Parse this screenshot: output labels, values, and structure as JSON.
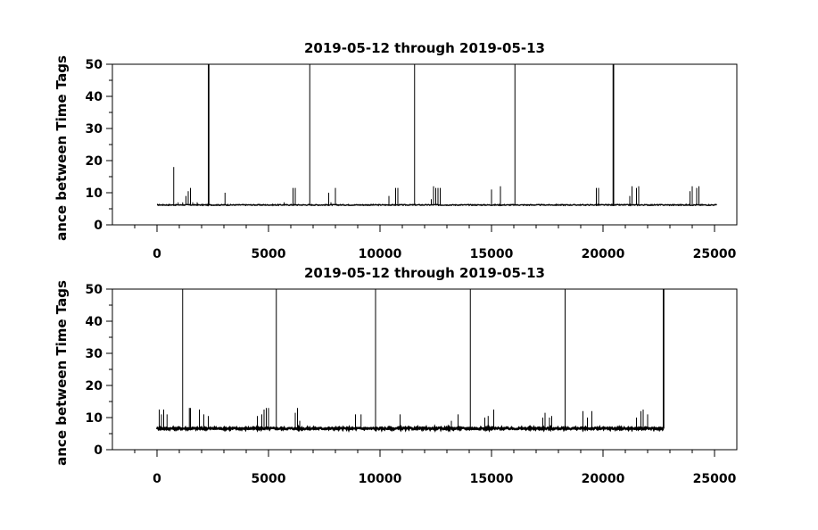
{
  "chart_data": [
    {
      "type": "line",
      "title": "2019-05-12 through 2019-05-13",
      "xlabel": "",
      "ylabel": "ance between Time Tags",
      "xlim": [
        -2000,
        26000
      ],
      "ylim": [
        0,
        50
      ],
      "x_ticks": [
        0,
        5000,
        10000,
        15000,
        20000,
        25000
      ],
      "x_tick_labels": [
        "0",
        "5000",
        "10000",
        "15000",
        "20000",
        "25000"
      ],
      "y_ticks": [
        0,
        10,
        20,
        30,
        40,
        50
      ],
      "y_tick_labels": [
        "0",
        "10",
        "20",
        "30",
        "40",
        "50"
      ],
      "baseline": {
        "x_start": 0,
        "x_end": 25100,
        "value": 6.2,
        "noise": 0.3
      },
      "spikes": [
        {
          "x": 750,
          "y": 18
        },
        {
          "x": 950,
          "y": 7
        },
        {
          "x": 1150,
          "y": 7
        },
        {
          "x": 1300,
          "y": 9
        },
        {
          "x": 1400,
          "y": 10.5
        },
        {
          "x": 1500,
          "y": 11.5
        },
        {
          "x": 1600,
          "y": 7
        },
        {
          "x": 1800,
          "y": 7
        },
        {
          "x": 2300,
          "y": 50
        },
        {
          "x": 2330,
          "y": 50
        },
        {
          "x": 3050,
          "y": 10
        },
        {
          "x": 5700,
          "y": 7
        },
        {
          "x": 6100,
          "y": 11.5
        },
        {
          "x": 6200,
          "y": 11.5
        },
        {
          "x": 6850,
          "y": 50
        },
        {
          "x": 7700,
          "y": 10
        },
        {
          "x": 7800,
          "y": 7
        },
        {
          "x": 8000,
          "y": 11.5
        },
        {
          "x": 10400,
          "y": 9
        },
        {
          "x": 10700,
          "y": 11.5
        },
        {
          "x": 10800,
          "y": 11.5
        },
        {
          "x": 11550,
          "y": 50
        },
        {
          "x": 12300,
          "y": 8
        },
        {
          "x": 12400,
          "y": 12
        },
        {
          "x": 12500,
          "y": 11.5
        },
        {
          "x": 12600,
          "y": 11.5
        },
        {
          "x": 12700,
          "y": 11.5
        },
        {
          "x": 15000,
          "y": 11
        },
        {
          "x": 15400,
          "y": 12
        },
        {
          "x": 16050,
          "y": 50
        },
        {
          "x": 19700,
          "y": 11.5
        },
        {
          "x": 19800,
          "y": 11.5
        },
        {
          "x": 20450,
          "y": 50
        },
        {
          "x": 20480,
          "y": 50
        },
        {
          "x": 21200,
          "y": 9
        },
        {
          "x": 21300,
          "y": 12
        },
        {
          "x": 21500,
          "y": 11.5
        },
        {
          "x": 21600,
          "y": 12
        },
        {
          "x": 23900,
          "y": 10.5
        },
        {
          "x": 24000,
          "y": 12
        },
        {
          "x": 24200,
          "y": 11.5
        },
        {
          "x": 24300,
          "y": 12
        }
      ]
    },
    {
      "type": "line",
      "title": "2019-05-12 through 2019-05-13",
      "xlabel": "",
      "ylabel": "ance between Time Tags",
      "xlim": [
        -2000,
        26000
      ],
      "ylim": [
        0,
        50
      ],
      "x_ticks": [
        0,
        5000,
        10000,
        15000,
        20000,
        25000
      ],
      "x_tick_labels": [
        "0",
        "5000",
        "10000",
        "15000",
        "20000",
        "25000"
      ],
      "y_ticks": [
        0,
        10,
        20,
        30,
        40,
        50
      ],
      "y_tick_labels": [
        "0",
        "10",
        "20",
        "30",
        "40",
        "50"
      ],
      "baseline": {
        "x_start": 0,
        "x_end": 22700,
        "value": 6.6,
        "noise": 0.6
      },
      "spikes": [
        {
          "x": 100,
          "y": 12.5
        },
        {
          "x": 200,
          "y": 11
        },
        {
          "x": 300,
          "y": 12.5
        },
        {
          "x": 450,
          "y": 11
        },
        {
          "x": 1150,
          "y": 50
        },
        {
          "x": 1450,
          "y": 13
        },
        {
          "x": 1500,
          "y": 13
        },
        {
          "x": 1900,
          "y": 12.5
        },
        {
          "x": 2100,
          "y": 11
        },
        {
          "x": 2300,
          "y": 10.5
        },
        {
          "x": 4500,
          "y": 10.5
        },
        {
          "x": 4700,
          "y": 11
        },
        {
          "x": 4800,
          "y": 12.5
        },
        {
          "x": 4900,
          "y": 13
        },
        {
          "x": 5000,
          "y": 13
        },
        {
          "x": 5350,
          "y": 50
        },
        {
          "x": 6200,
          "y": 11.5
        },
        {
          "x": 6300,
          "y": 13
        },
        {
          "x": 6400,
          "y": 9
        },
        {
          "x": 8900,
          "y": 11
        },
        {
          "x": 9150,
          "y": 11
        },
        {
          "x": 9800,
          "y": 50
        },
        {
          "x": 10900,
          "y": 11
        },
        {
          "x": 13200,
          "y": 9
        },
        {
          "x": 13500,
          "y": 11
        },
        {
          "x": 14050,
          "y": 50
        },
        {
          "x": 14700,
          "y": 10
        },
        {
          "x": 14850,
          "y": 10.5
        },
        {
          "x": 15100,
          "y": 12.5
        },
        {
          "x": 17300,
          "y": 10
        },
        {
          "x": 17400,
          "y": 11.5
        },
        {
          "x": 17600,
          "y": 10
        },
        {
          "x": 17700,
          "y": 10.5
        },
        {
          "x": 18300,
          "y": 50
        },
        {
          "x": 19100,
          "y": 12
        },
        {
          "x": 19300,
          "y": 10
        },
        {
          "x": 19500,
          "y": 12
        },
        {
          "x": 21500,
          "y": 10
        },
        {
          "x": 21700,
          "y": 12
        },
        {
          "x": 21800,
          "y": 12.5
        },
        {
          "x": 22000,
          "y": 11
        },
        {
          "x": 22700,
          "y": 50
        },
        {
          "x": 22730,
          "y": 50
        }
      ]
    }
  ]
}
